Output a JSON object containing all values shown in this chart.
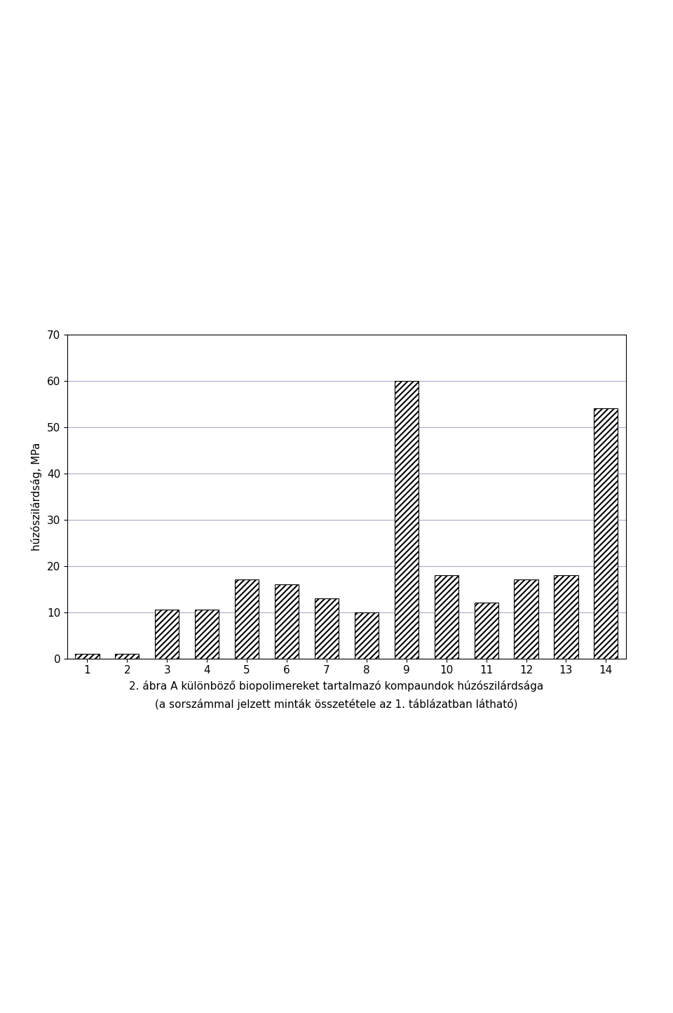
{
  "categories": [
    1,
    2,
    3,
    4,
    5,
    6,
    7,
    8,
    9,
    10,
    11,
    12,
    13,
    14
  ],
  "values": [
    1,
    1,
    10.5,
    10.5,
    17,
    16,
    13,
    10,
    60,
    18,
    12,
    17,
    18,
    54
  ],
  "bar_color_face": "#ffffff",
  "bar_color_hatch": "#4472c4",
  "bar_color_edge": "#000000",
  "hatch_pattern": "////",
  "ylabel": "húzószilárdság, MPa",
  "xlabel": "",
  "ylim": [
    0,
    70
  ],
  "yticks": [
    0,
    10,
    20,
    30,
    40,
    50,
    60,
    70
  ],
  "caption_line1": "2. ábra A különböző biopolimereket tartalmazó kompaundok húzószilárdsága",
  "caption_line2": "(a sorszámmal jelzett minták összetétele az 1. táblázatban látható)",
  "grid_color": "#aaaacc",
  "grid_linestyle": "-",
  "grid_linewidth": 0.8,
  "bar_width": 0.6,
  "figure_width": 9.6,
  "figure_height": 14.44,
  "chart_area_color": "#ffffff",
  "border_color": "#000000"
}
